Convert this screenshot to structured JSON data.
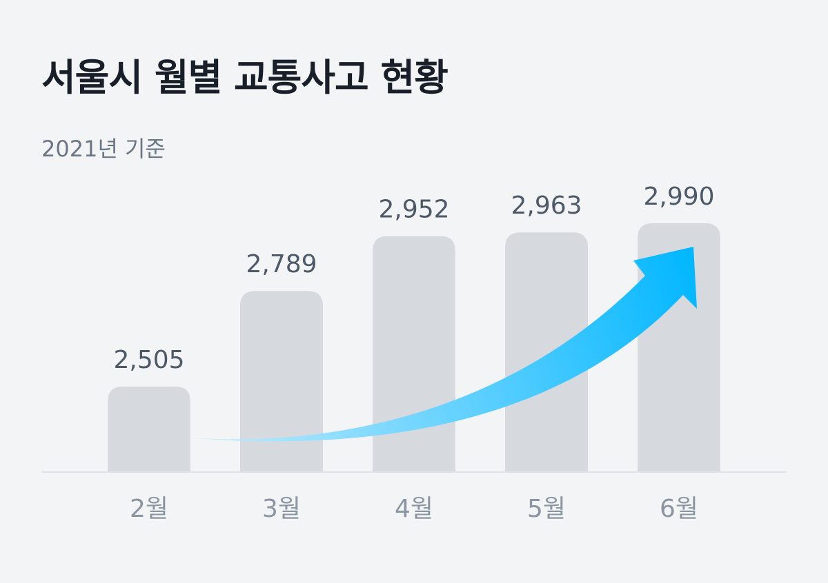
{
  "title": "서울시 월별 교통사고 현황",
  "subtitle": "2021년 기준",
  "chart_data": {
    "type": "bar",
    "title": "서울시 월별 교통사고 현황",
    "subtitle": "2021년 기준",
    "categories": [
      "2월",
      "3월",
      "4월",
      "5월",
      "6월"
    ],
    "values": [
      2505,
      2789,
      2952,
      2963,
      2990
    ],
    "value_labels": [
      "2,505",
      "2,789",
      "2,952",
      "2,963",
      "2,990"
    ],
    "xlabel": "",
    "ylabel": "",
    "grid": false,
    "legend": "none",
    "trend_arrow": true
  },
  "colors": {
    "background": "#f2f4f6",
    "bar": "#d6dade",
    "baseline": "#dfe2e6",
    "title": "#191f28",
    "subtitle": "#6b7684",
    "value_label": "#4e5968",
    "tick_label": "#8b95a1",
    "arrow_start": "#cdeefd",
    "arrow_end": "#00b6ff"
  }
}
